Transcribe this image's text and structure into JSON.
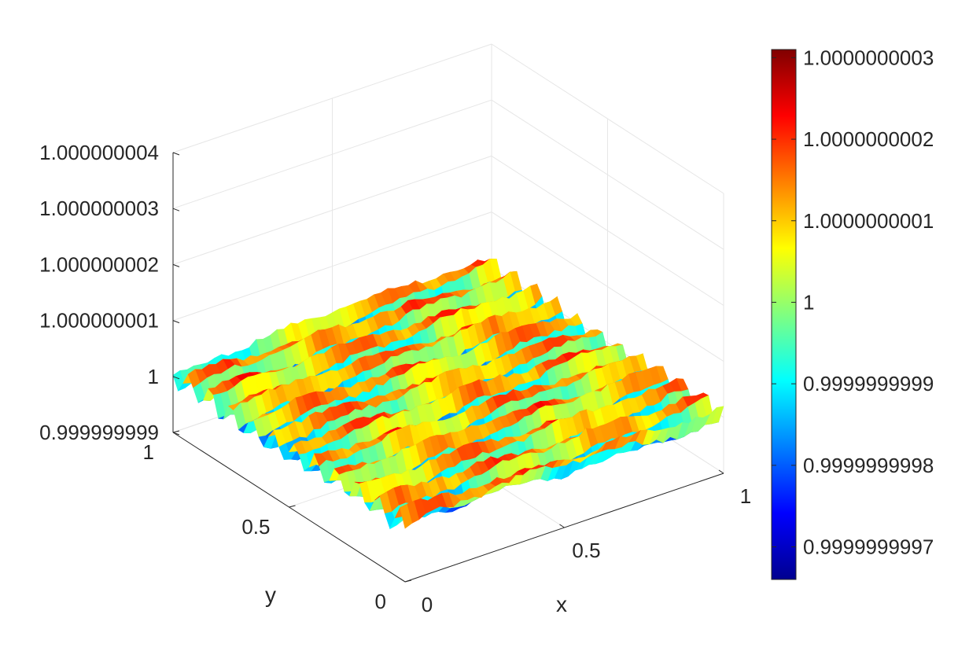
{
  "chart_data": {
    "type": "surface",
    "title": "",
    "xlabel": "x",
    "ylabel": "y",
    "zlabel": "",
    "xlim": [
      0,
      1
    ],
    "ylim": [
      0,
      1
    ],
    "zlim": [
      0.999999999,
      1.000000004
    ],
    "x_ticks": [
      {
        "value": 0,
        "label": "0"
      },
      {
        "value": 0.5,
        "label": "0.5"
      },
      {
        "value": 1,
        "label": "1"
      }
    ],
    "y_ticks": [
      {
        "value": 0,
        "label": "0"
      },
      {
        "value": 0.5,
        "label": "0.5"
      },
      {
        "value": 1,
        "label": "1"
      }
    ],
    "z_ticks": [
      {
        "value": 0.999999999,
        "label": "0.999999999"
      },
      {
        "value": 1.0,
        "label": "1"
      },
      {
        "value": 1.000000001,
        "label": "1.000000001"
      },
      {
        "value": 1.000000002,
        "label": "1.000000002"
      },
      {
        "value": 1.000000003,
        "label": "1.000000003"
      },
      {
        "value": 1.000000004,
        "label": "1.000000004"
      }
    ],
    "colorbar": {
      "colormap": "jet",
      "range": [
        0.99999999966,
        1.00000000031
      ],
      "ticks": [
        {
          "value": 0.9999999997,
          "label": "0.9999999997"
        },
        {
          "value": 0.9999999998,
          "label": "0.9999999998"
        },
        {
          "value": 0.9999999999,
          "label": "0.9999999999"
        },
        {
          "value": 1.0,
          "label": "1"
        },
        {
          "value": 1.0000000001,
          "label": "1.0000000001"
        },
        {
          "value": 1.0000000002,
          "label": "1.0000000002"
        },
        {
          "value": 1.0000000003,
          "label": "1.0000000003"
        }
      ]
    },
    "surface": {
      "mean": 1.0,
      "amplitude": 3e-10,
      "description_pattern": "noisy ripples along x"
    },
    "grid": true
  }
}
